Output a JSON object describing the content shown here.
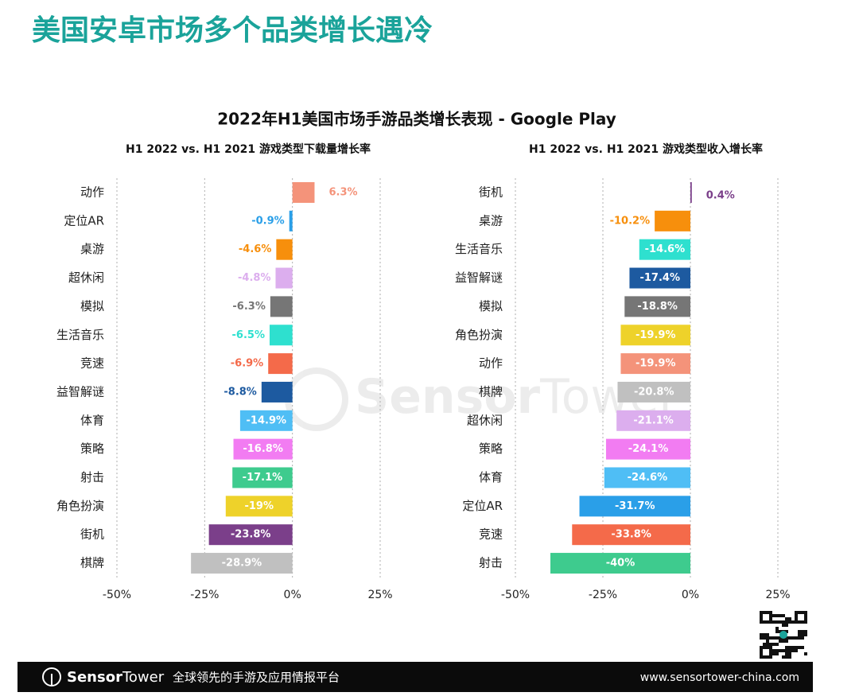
{
  "page_title": "美国安卓市场多个品类增长遇冷",
  "chart_title": "2022年H1美国市场手游品类增长表现 - Google Play",
  "chart_data": [
    {
      "type": "bar",
      "orientation": "horizontal",
      "subtitle": "H1 2022 vs. H1 2021 游戏类型下载量增长率",
      "categories": [
        "动作",
        "定位AR",
        "桌游",
        "超休闲",
        "模拟",
        "生活音乐",
        "竞速",
        "益智解谜",
        "体育",
        "策略",
        "射击",
        "角色扮演",
        "街机",
        "棋牌"
      ],
      "values": [
        6.3,
        -0.9,
        -4.6,
        -4.8,
        -6.3,
        -6.5,
        -6.9,
        -8.8,
        -14.9,
        -16.8,
        -17.1,
        -19,
        -23.8,
        -28.9
      ],
      "value_labels": [
        "6.3%",
        "-0.9%",
        "-4.6%",
        "-4.8%",
        "-6.3%",
        "-6.5%",
        "-6.9%",
        "-8.8%",
        "-14.9%",
        "-16.8%",
        "-17.1%",
        "-19%",
        "-23.8%",
        "-28.9%"
      ],
      "colors": [
        "#f4937a",
        "#2a9fe8",
        "#f78f0c",
        "#dcaeee",
        "#767676",
        "#2ee0cf",
        "#f46a4a",
        "#1d5aa0",
        "#4fbef5",
        "#f27cf2",
        "#3ecb8e",
        "#eed22a",
        "#7b3f8a",
        "#c0c0c0"
      ],
      "xlim": [
        -50,
        25
      ],
      "xticks": [
        {
          "value": -50,
          "label": "-50%"
        },
        {
          "value": -25,
          "label": "-25%"
        },
        {
          "value": 0,
          "label": "0%"
        },
        {
          "value": 25,
          "label": "25%"
        }
      ],
      "grid": true
    },
    {
      "type": "bar",
      "orientation": "horizontal",
      "subtitle": "H1 2022 vs. H1 2021 游戏类型收入增长率",
      "categories": [
        "街机",
        "桌游",
        "生活音乐",
        "益智解谜",
        "模拟",
        "角色扮演",
        "动作",
        "棋牌",
        "超休闲",
        "策略",
        "体育",
        "定位AR",
        "竞速",
        "射击"
      ],
      "values": [
        0.4,
        -10.2,
        -14.6,
        -17.4,
        -18.8,
        -19.9,
        -19.9,
        -20.8,
        -21.1,
        -24.1,
        -24.6,
        -31.7,
        -33.8,
        -40
      ],
      "value_labels": [
        "0.4%",
        "-10.2%",
        "-14.6%",
        "-17.4%",
        "-18.8%",
        "-19.9%",
        "-19.9%",
        "-20.8%",
        "-21.1%",
        "-24.1%",
        "-24.6%",
        "-31.7%",
        "-33.8%",
        "-40%"
      ],
      "colors": [
        "#7b3f8a",
        "#f78f0c",
        "#2ee0cf",
        "#1d5aa0",
        "#767676",
        "#eed22a",
        "#f4937a",
        "#c0c0c0",
        "#dcaeee",
        "#f27cf2",
        "#4fbef5",
        "#2a9fe8",
        "#f46a4a",
        "#3ecb8e"
      ],
      "xlim": [
        -50,
        25
      ],
      "xticks": [
        {
          "value": -50,
          "label": "-50%"
        },
        {
          "value": -25,
          "label": "-25%"
        },
        {
          "value": 0,
          "label": "0%"
        },
        {
          "value": 25,
          "label": "25%"
        }
      ],
      "grid": true
    }
  ],
  "footer": {
    "brand_1": "Sensor",
    "brand_2": "Tower",
    "tagline": "全球领先的手游及应用情报平台",
    "url": "www.sensortower-china.com"
  }
}
